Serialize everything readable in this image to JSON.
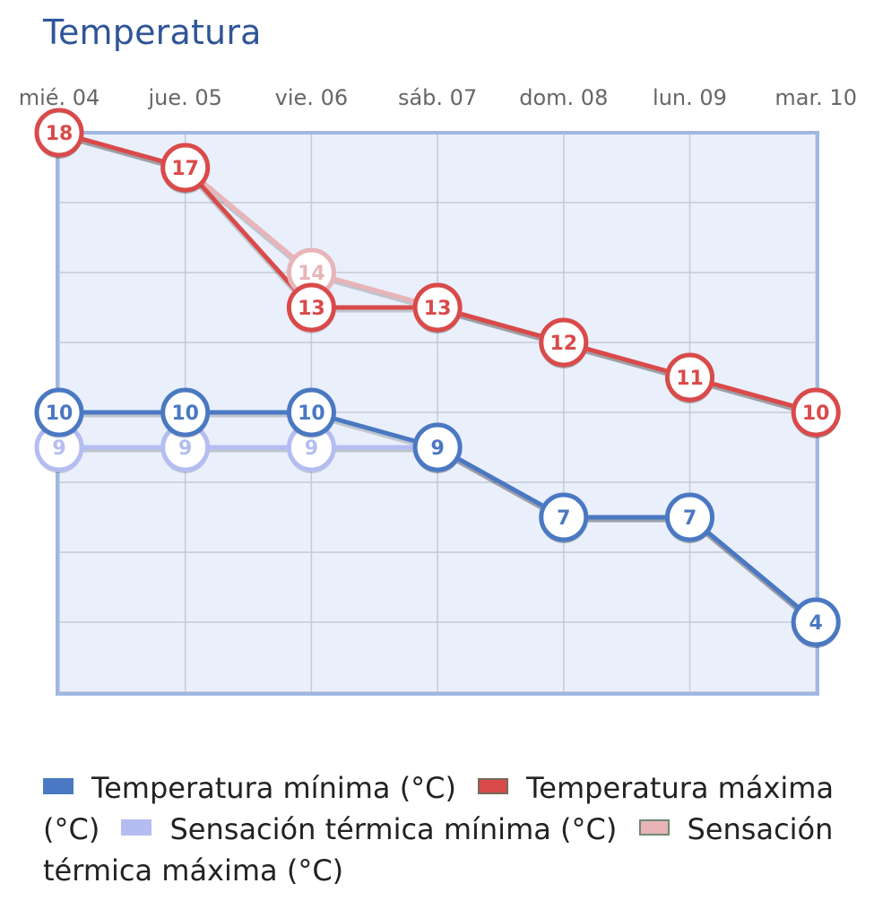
{
  "title": "Temperatura",
  "colors": {
    "tmin": "#4a78c2",
    "tmax": "#d94a4a",
    "smin": "#b4bdf2",
    "smax": "#e8b4b8",
    "plot_bg": "#e9effb",
    "plot_border": "#9fb7e1",
    "grid": "#c5cad6"
  },
  "chart_data": {
    "type": "line",
    "title": "Temperatura",
    "categories": [
      "mié. 04",
      "jue. 05",
      "vie. 06",
      "sáb. 07",
      "dom. 08",
      "lun. 09",
      "mar. 10"
    ],
    "ylim": [
      2,
      18
    ],
    "grid": true,
    "legend": "bottom",
    "series": [
      {
        "name": "Temperatura mínima (°C)",
        "key": "tmin",
        "values": [
          10,
          10,
          10,
          9,
          7,
          7,
          4
        ]
      },
      {
        "name": "Temperatura máxima (°C)",
        "key": "tmax",
        "values": [
          18,
          17,
          13,
          13,
          12,
          11,
          10
        ]
      },
      {
        "name": "Sensación térmica mínima (°C)",
        "key": "smin",
        "values": [
          9,
          9,
          9,
          9,
          7,
          7,
          4
        ]
      },
      {
        "name": "Sensación térmica máxima (°C)",
        "key": "smax",
        "values": [
          18,
          17,
          14,
          13,
          12,
          11,
          10
        ]
      }
    ]
  }
}
